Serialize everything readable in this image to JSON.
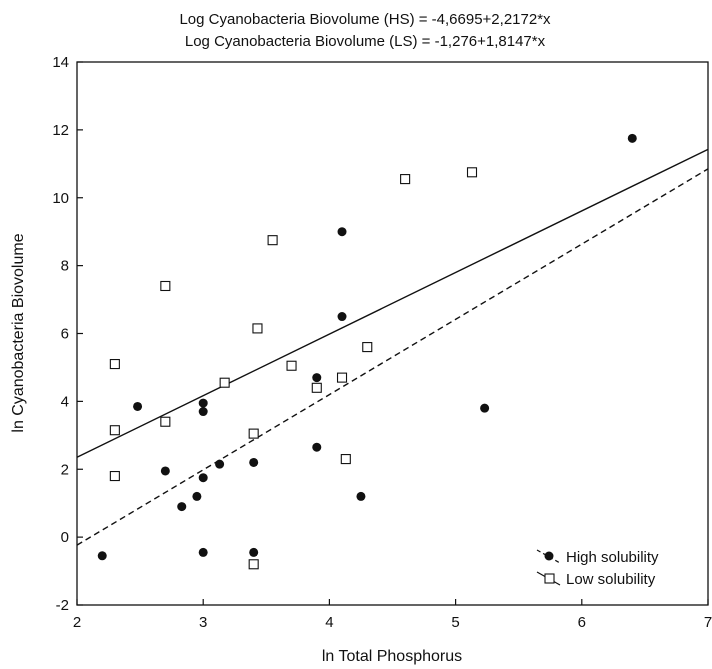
{
  "chart_data": {
    "type": "scatter",
    "title_lines": [
      "Log Cyanobacteria Biovolume (HS) = -4,6695+2,2172*x",
      "Log Cyanobacteria Biovolume (LS) = -1,276+1,8147*x"
    ],
    "xlabel": "ln Total Phosphorus",
    "ylabel": "ln Cyanobacteria Biovolume",
    "xlim": [
      2,
      7
    ],
    "ylim": [
      -2,
      14
    ],
    "xticks": [
      "2",
      "3",
      "4",
      "5",
      "6",
      "7"
    ],
    "yticks": [
      "-2",
      "0",
      "2",
      "4",
      "6",
      "8",
      "10",
      "12",
      "14"
    ],
    "grid": false,
    "legend_position": "bottom-right",
    "series": [
      {
        "name": "High solubility",
        "marker": "filled-circle",
        "line_style": "dashed",
        "fit": {
          "intercept": -4.6695,
          "slope": 2.2172
        },
        "points": [
          [
            2.2,
            -0.55
          ],
          [
            2.48,
            3.85
          ],
          [
            2.7,
            1.95
          ],
          [
            2.83,
            0.9
          ],
          [
            2.95,
            1.2
          ],
          [
            3.0,
            3.95
          ],
          [
            3.0,
            3.7
          ],
          [
            3.0,
            1.75
          ],
          [
            3.0,
            -0.45
          ],
          [
            3.13,
            2.15
          ],
          [
            3.4,
            2.2
          ],
          [
            3.4,
            -0.45
          ],
          [
            3.9,
            4.7
          ],
          [
            3.9,
            2.65
          ],
          [
            4.1,
            9.0
          ],
          [
            4.1,
            6.5
          ],
          [
            4.25,
            1.2
          ],
          [
            5.23,
            3.8
          ],
          [
            6.4,
            11.75
          ]
        ]
      },
      {
        "name": "Low solubility",
        "marker": "open-square",
        "line_style": "solid",
        "fit": {
          "intercept": -1.276,
          "slope": 1.8147
        },
        "points": [
          [
            2.3,
            5.1
          ],
          [
            2.3,
            3.15
          ],
          [
            2.3,
            1.8
          ],
          [
            2.7,
            7.4
          ],
          [
            2.7,
            3.4
          ],
          [
            3.17,
            4.55
          ],
          [
            3.4,
            3.05
          ],
          [
            3.4,
            -0.8
          ],
          [
            3.43,
            6.15
          ],
          [
            3.55,
            8.75
          ],
          [
            3.7,
            5.05
          ],
          [
            3.9,
            4.4
          ],
          [
            4.1,
            4.7
          ],
          [
            4.13,
            2.3
          ],
          [
            4.3,
            5.6
          ],
          [
            4.6,
            10.55
          ],
          [
            5.13,
            10.75
          ]
        ]
      }
    ]
  }
}
